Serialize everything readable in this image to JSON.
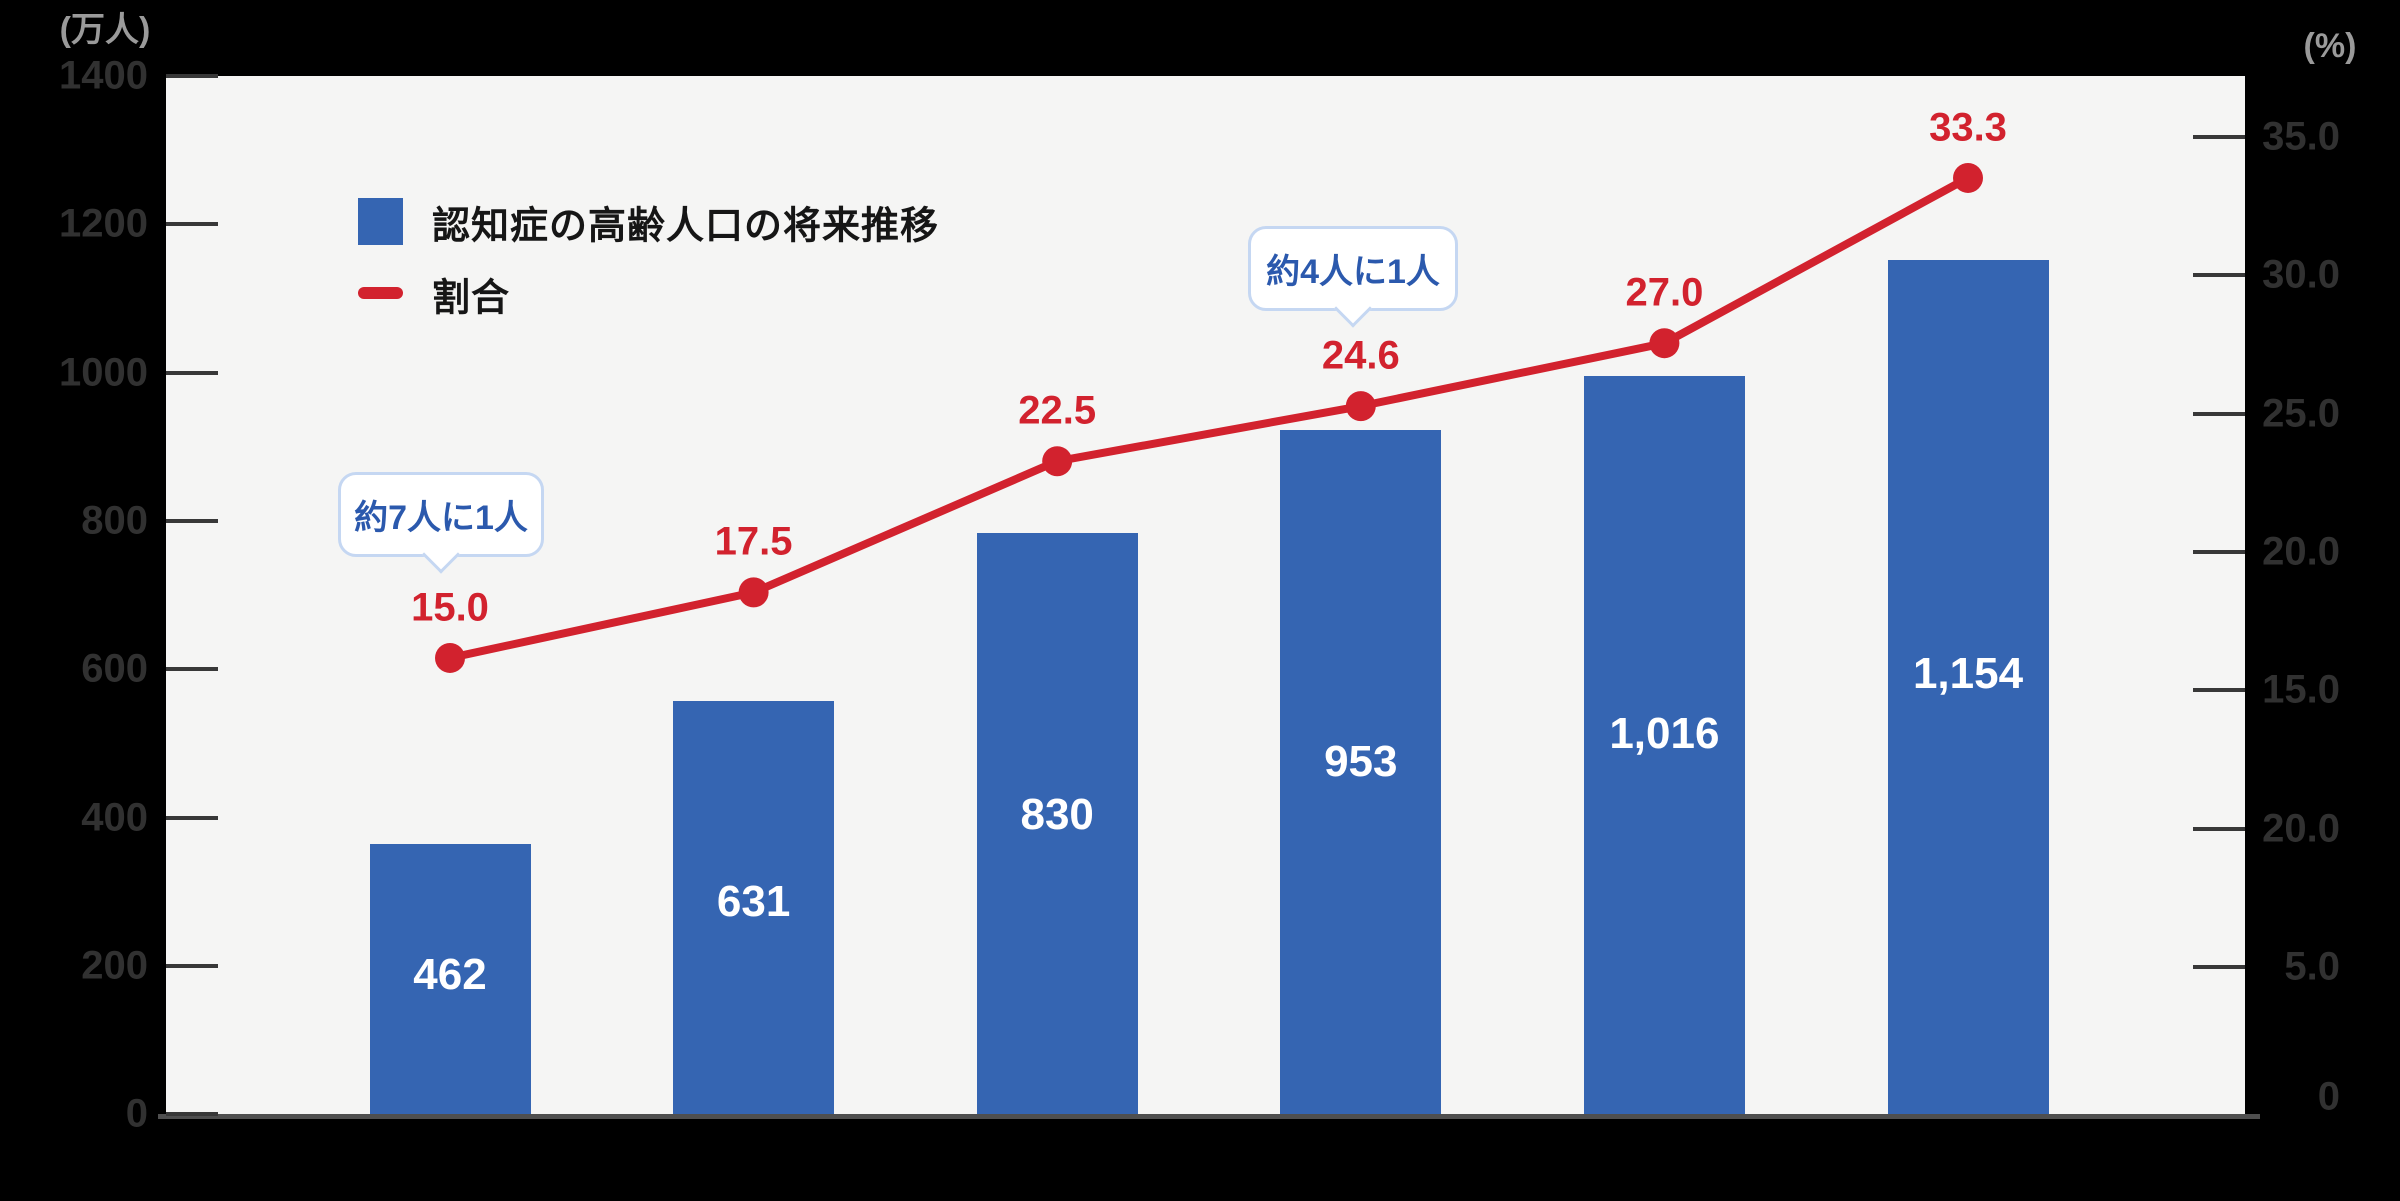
{
  "axes": {
    "left": {
      "unit": "(万人)",
      "ticks": [
        "1400",
        "1200",
        "1000",
        "800",
        "600",
        "400",
        "200",
        "0"
      ]
    },
    "right": {
      "unit": "(%)",
      "ticks": [
        "35.0",
        "30.0",
        "25.0",
        "20.0",
        "15.0",
        "20.0",
        "5.0",
        "0"
      ]
    }
  },
  "legend": {
    "bar_label": "認知症の高齢人口の将来推移",
    "line_label": "割合"
  },
  "annotations": {
    "first": "約7人に1人",
    "second": "約4人に1人"
  },
  "colors": {
    "bar": "#3565b2",
    "line": "#d2222e",
    "plot_background": "#f5f5f4",
    "page_background": "#000000",
    "annotation_text": "#2b59ad"
  },
  "chart_data": [
    {
      "type": "bar",
      "name": "認知症の高齢人口の将来推移",
      "axis": "left",
      "ylabel": "(万人)",
      "ylim": [
        0,
        1400
      ],
      "values": [
        462,
        631,
        830,
        953,
        1016,
        1154
      ],
      "value_labels": [
        "462",
        "631",
        "830",
        "953",
        "1,016",
        "1,154"
      ],
      "color": "#3565b2"
    },
    {
      "type": "line",
      "name": "割合",
      "axis": "right",
      "ylabel": "(%)",
      "ylim": [
        0,
        35
      ],
      "values": [
        15.0,
        17.5,
        22.5,
        24.6,
        27.0,
        33.3
      ],
      "value_labels": [
        "15.0",
        "17.5",
        "22.5",
        "24.6",
        "27.0",
        "33.3"
      ],
      "color": "#d2222e",
      "point_annotations": [
        {
          "point_index": 0,
          "text": "約7人に1人"
        },
        {
          "point_index": 3,
          "text": "約4人に1人"
        }
      ]
    }
  ]
}
